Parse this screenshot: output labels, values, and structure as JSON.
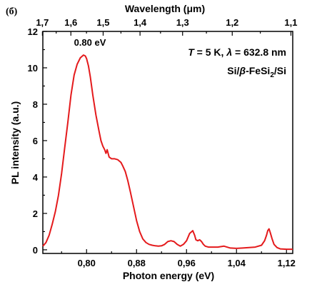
{
  "chart_data": {
    "type": "line",
    "panel_label": "(б)",
    "xlabel": "Photon energy (eV)",
    "ylabel": "PL intensity (a.u.)",
    "top_xlabel": "Wavelength (μm)",
    "xlim": [
      0.73,
      1.13
    ],
    "ylim": [
      -0.2,
      12
    ],
    "x_ticks": [
      0.8,
      0.88,
      0.96,
      1.04,
      1.12
    ],
    "x_tick_labels": [
      "0,80",
      "0,88",
      "0,96",
      "1,04",
      "1,12"
    ],
    "y_ticks": [
      0,
      2,
      4,
      6,
      8,
      10,
      12
    ],
    "y_tick_labels": [
      "0",
      "2",
      "4",
      "6",
      "8",
      "10",
      "12"
    ],
    "top_ticks_um": [
      1.7,
      1.6,
      1.5,
      1.4,
      1.3,
      1.2,
      1.1
    ],
    "top_tick_labels": [
      "1,7",
      "1,6",
      "1,5",
      "1,4",
      "1,3",
      "1,2",
      "1,1"
    ],
    "annotations": {
      "conditions": {
        "T_symbol": "T",
        "T_rest": " = 5 K, ",
        "lambda_symbol": "λ",
        "lambda_rest": " = 632.8 nm"
      },
      "sample": {
        "prefix": "Si/",
        "beta": "β",
        "middle": "-FeSi",
        "subscript": "2",
        "suffix": "/Si"
      },
      "peak_label": "0.80 eV"
    },
    "colors": {
      "series": "#e41a1c",
      "peak_label": "#1f2f9e",
      "axis": "#000000"
    },
    "series": [
      {
        "x": [
          0.73,
          0.735,
          0.74,
          0.745,
          0.75,
          0.755,
          0.76,
          0.765,
          0.77,
          0.775,
          0.78,
          0.785,
          0.79,
          0.795,
          0.798,
          0.8,
          0.803,
          0.806,
          0.81,
          0.815,
          0.82,
          0.823,
          0.826,
          0.829,
          0.831,
          0.833,
          0.836,
          0.84,
          0.845,
          0.85,
          0.855,
          0.858,
          0.862,
          0.866,
          0.87,
          0.875,
          0.88,
          0.885,
          0.89,
          0.895,
          0.9,
          0.905,
          0.91,
          0.915,
          0.92,
          0.925,
          0.93,
          0.935,
          0.94,
          0.945,
          0.95,
          0.955,
          0.96,
          0.965,
          0.97,
          0.973,
          0.975,
          0.978,
          0.981,
          0.984,
          0.987,
          0.99,
          0.995,
          1.0,
          1.01,
          1.02,
          1.03,
          1.04,
          1.05,
          1.06,
          1.07,
          1.08,
          1.085,
          1.088,
          1.09,
          1.092,
          1.094,
          1.097,
          1.1,
          1.105,
          1.11,
          1.12,
          1.13
        ],
        "y": [
          0.2,
          0.4,
          0.8,
          1.4,
          2.1,
          3.0,
          4.2,
          5.6,
          7.0,
          8.5,
          9.6,
          10.2,
          10.55,
          10.7,
          10.65,
          10.5,
          10.1,
          9.5,
          8.5,
          7.4,
          6.5,
          6.0,
          5.7,
          5.5,
          5.3,
          5.5,
          5.1,
          5.0,
          5.0,
          4.95,
          4.8,
          4.6,
          4.3,
          3.8,
          3.2,
          2.4,
          1.6,
          1.0,
          0.6,
          0.4,
          0.3,
          0.25,
          0.22,
          0.2,
          0.22,
          0.3,
          0.45,
          0.5,
          0.45,
          0.3,
          0.2,
          0.3,
          0.5,
          0.9,
          1.05,
          0.8,
          0.55,
          0.5,
          0.55,
          0.45,
          0.3,
          0.2,
          0.15,
          0.15,
          0.15,
          0.2,
          0.1,
          0.08,
          0.1,
          0.12,
          0.15,
          0.25,
          0.5,
          0.8,
          1.05,
          1.15,
          0.95,
          0.6,
          0.3,
          0.12,
          0.05,
          0.03,
          0.03
        ]
      }
    ]
  }
}
